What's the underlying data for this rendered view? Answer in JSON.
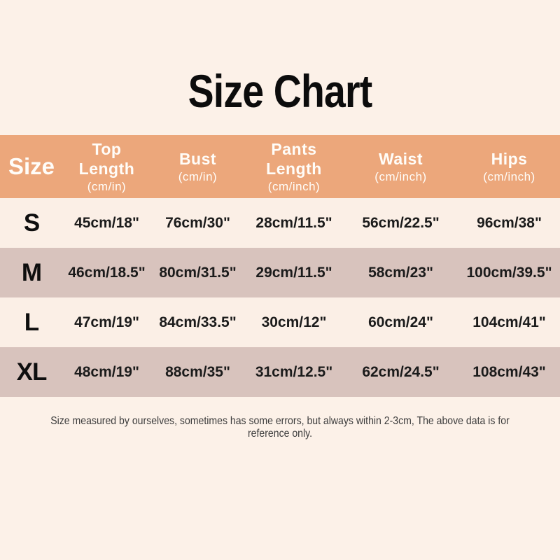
{
  "page": {
    "title": "Size Chart",
    "footnote": "Size measured by ourselves, sometimes has some errors, but always within 2-3cm, The above data is for reference only.",
    "colors": {
      "background": "#fcf1e8",
      "header_background": "#eca77b",
      "header_text": "#ffffff",
      "row_light_background": "#fbefe6",
      "row_dark_background": "#d8c3bd",
      "title_text": "#0c0c0c",
      "cell_text": "#1b1b1b",
      "footnote_text": "#3c3c3c"
    }
  },
  "table": {
    "header": {
      "size": "Size",
      "top_length": {
        "l1": "Top",
        "l2": "Length",
        "unit": "(cm/in)"
      },
      "bust": {
        "l1": "Bust",
        "unit": "(cm/in)"
      },
      "pants_length": {
        "l1": "Pants",
        "l2": "Length",
        "unit": "(cm/inch)"
      },
      "waist": {
        "l1": "Waist",
        "unit": "(cm/inch)"
      },
      "hips": {
        "l1": "Hips",
        "unit": "(cm/inch)"
      }
    },
    "rows": [
      {
        "size": "S",
        "top_length": "45cm/18\"",
        "bust": "76cm/30\"",
        "pants_length": "28cm/11.5\"",
        "waist": "56cm/22.5\"",
        "hips": "96cm/38\""
      },
      {
        "size": "M",
        "top_length": "46cm/18.5\"",
        "bust": "80cm/31.5\"",
        "pants_length": "29cm/11.5\"",
        "waist": "58cm/23\"",
        "hips": "100cm/39.5\""
      },
      {
        "size": "L",
        "top_length": "47cm/19\"",
        "bust": "84cm/33.5\"",
        "pants_length": "30cm/12\"",
        "waist": "60cm/24\"",
        "hips": "104cm/41\""
      },
      {
        "size": "XL",
        "top_length": "48cm/19\"",
        "bust": "88cm/35\"",
        "pants_length": "31cm/12.5\"",
        "waist": "62cm/24.5\"",
        "hips": "108cm/43\""
      }
    ]
  },
  "chart_data": {
    "type": "table",
    "title": "Size Chart",
    "columns": [
      "Size",
      "Top Length (cm/in)",
      "Bust (cm/in)",
      "Pants Length (cm/inch)",
      "Waist (cm/inch)",
      "Hips (cm/inch)"
    ],
    "rows": [
      [
        "S",
        "45cm/18\"",
        "76cm/30\"",
        "28cm/11.5\"",
        "56cm/22.5\"",
        "96cm/38\""
      ],
      [
        "M",
        "46cm/18.5\"",
        "80cm/31.5\"",
        "29cm/11.5\"",
        "58cm/23\"",
        "100cm/39.5\""
      ],
      [
        "L",
        "47cm/19\"",
        "84cm/33.5\"",
        "30cm/12\"",
        "60cm/24\"",
        "104cm/41\""
      ],
      [
        "XL",
        "48cm/19\"",
        "88cm/35\"",
        "31cm/12.5\"",
        "62cm/24.5\"",
        "108cm/43\""
      ]
    ],
    "footnote": "Size measured by ourselves, sometimes has some errors, but always within 2-3cm, The above data is for reference only."
  }
}
